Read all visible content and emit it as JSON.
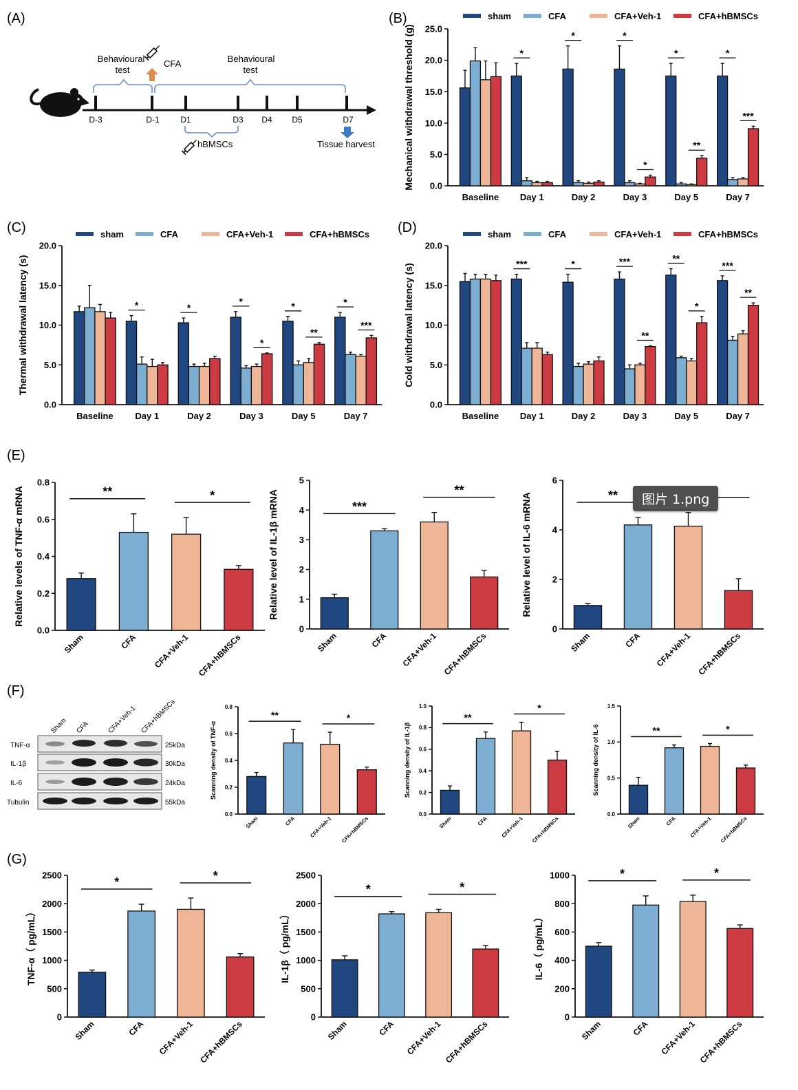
{
  "figure": {
    "panel_letters": [
      "(A)",
      "(B)",
      "(C)",
      "(D)",
      "(E)",
      "(F)",
      "(G)"
    ],
    "legend_labels": [
      "sham",
      "CFA",
      "CFA+Veh-1",
      "CFA+hBMSCs"
    ],
    "timepoints": [
      "Baseline",
      "Day 1",
      "Day 2",
      "Day 3",
      "Day 5",
      "Day 7"
    ],
    "groups": [
      "Sham",
      "CFA",
      "CFA+Veh-1",
      "CFA+hBMSCs"
    ],
    "colors": {
      "sham": "#20477f",
      "cfa": "#7eadd2",
      "veh": "#eeb597",
      "hbmsc": "#cc3b41",
      "ink": "#111111",
      "arrow_orange": "#e08b4f",
      "arrow_blue": "#3f7bc2"
    }
  },
  "tooltip": {
    "label": "图片 1.png"
  },
  "timeline": {
    "days": [
      "D-3",
      "D-1",
      "D1",
      "D3",
      "D4",
      "D5",
      "D7"
    ],
    "behavioural_test_1": [
      "Behavioural",
      "test"
    ],
    "behavioural_test_2": [
      "Behavioural",
      "test"
    ],
    "cfa_label": "CFA",
    "hbmsc_label": "hBMSCs",
    "harvest_label": "Tissue harvest",
    "icons": [
      "rat-icon",
      "syringe-icon",
      "orange-arrow-icon",
      "blue-arrow-icon"
    ]
  },
  "western_blot": {
    "lanes": [
      "Sham",
      "CFA",
      "CFA+Veh-1",
      "CFA+hBMSCs"
    ],
    "bands": [
      {
        "protein": "TNF-α",
        "size": "25kDa"
      },
      {
        "protein": "IL-1β",
        "size": "30kDa"
      },
      {
        "protein": "IL-6",
        "size": "24kDa"
      },
      {
        "protein": "Tubulin",
        "size": "55kDa"
      }
    ]
  },
  "chart_data": [
    {
      "id": "B",
      "type": "bar",
      "ylabel": "Mechanical withdrawal threshold (g)",
      "categories": [
        "Baseline",
        "Day 1",
        "Day 2",
        "Day 3",
        "Day 5",
        "Day 7"
      ],
      "ylim": [
        0,
        25
      ],
      "yticks": [
        "0.0",
        "5.0",
        "10.0",
        "15.0",
        "20.0",
        "25.0"
      ],
      "series": [
        {
          "name": "sham",
          "values": [
            15.6,
            17.5,
            18.6,
            18.6,
            17.5,
            17.5
          ],
          "errors": [
            2.8,
            2.0,
            3.7,
            3.7,
            2.0,
            2.0
          ]
        },
        {
          "name": "CFA",
          "values": [
            19.9,
            0.8,
            0.5,
            0.5,
            0.3,
            1.0
          ],
          "errors": [
            2.1,
            0.5,
            0.3,
            0.3,
            0.2,
            0.3
          ]
        },
        {
          "name": "CFA+Veh-1",
          "values": [
            16.9,
            0.5,
            0.4,
            0.3,
            0.2,
            1.1
          ],
          "errors": [
            3.0,
            0.2,
            0.2,
            0.1,
            0.1,
            0.2
          ]
        },
        {
          "name": "CFA+hBMSCs",
          "values": [
            17.4,
            0.5,
            0.6,
            1.4,
            4.4,
            9.1
          ],
          "errors": [
            2.2,
            0.2,
            0.2,
            0.3,
            0.4,
            0.4
          ]
        }
      ],
      "annotations": [
        {
          "cat": 1,
          "from": 0,
          "to": 1,
          "text": "*"
        },
        {
          "cat": 2,
          "from": 0,
          "to": 1,
          "text": "*"
        },
        {
          "cat": 3,
          "from": 0,
          "to": 1,
          "text": "*"
        },
        {
          "cat": 3,
          "from": 2,
          "to": 3,
          "text": "*"
        },
        {
          "cat": 4,
          "from": 0,
          "to": 1,
          "text": "*"
        },
        {
          "cat": 4,
          "from": 2,
          "to": 3,
          "text": "**"
        },
        {
          "cat": 5,
          "from": 0,
          "to": 1,
          "text": "*"
        },
        {
          "cat": 5,
          "from": 2,
          "to": 3,
          "text": "***"
        }
      ]
    },
    {
      "id": "C",
      "type": "bar",
      "ylabel": "Thermal withdrawal latency (s)",
      "categories": [
        "Baseline",
        "Day 1",
        "Day 2",
        "Day 3",
        "Day 5",
        "Day 7"
      ],
      "ylim": [
        0,
        20
      ],
      "yticks": [
        "0.0",
        "5.0",
        "10.0",
        "15.0",
        "20.0"
      ],
      "series": [
        {
          "name": "sham",
          "values": [
            11.7,
            10.5,
            10.3,
            11.0,
            10.5,
            11.0
          ],
          "errors": [
            0.7,
            0.7,
            0.6,
            0.7,
            0.6,
            0.6
          ]
        },
        {
          "name": "CFA",
          "values": [
            12.2,
            5.1,
            4.8,
            4.6,
            5.0,
            6.3
          ],
          "errors": [
            2.8,
            0.9,
            0.3,
            0.3,
            0.5,
            0.3
          ]
        },
        {
          "name": "CFA+Veh-1",
          "values": [
            11.7,
            4.8,
            4.8,
            4.8,
            5.3,
            6.1
          ],
          "errors": [
            0.9,
            0.9,
            0.4,
            0.3,
            0.5,
            0.2
          ]
        },
        {
          "name": "CFA+hBMSCs",
          "values": [
            10.9,
            5.0,
            5.8,
            6.4,
            7.6,
            8.4
          ],
          "errors": [
            0.7,
            0.3,
            0.3,
            0.1,
            0.2,
            0.3
          ]
        }
      ],
      "annotations": [
        {
          "cat": 1,
          "from": 0,
          "to": 1,
          "text": "*"
        },
        {
          "cat": 2,
          "from": 0,
          "to": 1,
          "text": "*"
        },
        {
          "cat": 3,
          "from": 0,
          "to": 1,
          "text": "*"
        },
        {
          "cat": 3,
          "from": 2,
          "to": 3,
          "text": "*"
        },
        {
          "cat": 4,
          "from": 0,
          "to": 1,
          "text": "*"
        },
        {
          "cat": 4,
          "from": 2,
          "to": 3,
          "text": "**"
        },
        {
          "cat": 5,
          "from": 0,
          "to": 1,
          "text": "*"
        },
        {
          "cat": 5,
          "from": 2,
          "to": 3,
          "text": "***"
        }
      ]
    },
    {
      "id": "D",
      "type": "bar",
      "ylabel": "Cold withdrawal latency (s)",
      "categories": [
        "Baseline",
        "Day 1",
        "Day 2",
        "Day 3",
        "Day 5",
        "Day 7"
      ],
      "ylim": [
        0,
        20
      ],
      "yticks": [
        "0.0",
        "5.0",
        "10.0",
        "15.0",
        "20.0"
      ],
      "series": [
        {
          "name": "sham",
          "values": [
            15.5,
            15.8,
            15.4,
            15.8,
            16.3,
            15.6
          ],
          "errors": [
            1.0,
            0.6,
            1.0,
            0.9,
            0.8,
            0.6
          ]
        },
        {
          "name": "CFA",
          "values": [
            15.8,
            7.1,
            4.8,
            4.5,
            5.9,
            8.1
          ],
          "errors": [
            0.6,
            0.7,
            0.4,
            0.5,
            0.2,
            0.5
          ]
        },
        {
          "name": "CFA+Veh-1",
          "values": [
            15.8,
            7.1,
            5.1,
            5.0,
            5.5,
            8.9
          ],
          "errors": [
            0.6,
            0.7,
            0.3,
            0.2,
            0.3,
            0.4
          ]
        },
        {
          "name": "CFA+hBMSCs",
          "values": [
            15.6,
            6.3,
            5.5,
            7.3,
            10.3,
            12.5
          ],
          "errors": [
            0.7,
            0.3,
            0.5,
            0.1,
            0.8,
            0.3
          ]
        }
      ],
      "annotations": [
        {
          "cat": 1,
          "from": 0,
          "to": 1,
          "text": "***"
        },
        {
          "cat": 2,
          "from": 0,
          "to": 1,
          "text": "*"
        },
        {
          "cat": 3,
          "from": 0,
          "to": 1,
          "text": "***"
        },
        {
          "cat": 3,
          "from": 2,
          "to": 3,
          "text": "**"
        },
        {
          "cat": 4,
          "from": 0,
          "to": 1,
          "text": "**"
        },
        {
          "cat": 4,
          "from": 2,
          "to": 3,
          "text": "*"
        },
        {
          "cat": 5,
          "from": 0,
          "to": 1,
          "text": "***"
        },
        {
          "cat": 5,
          "from": 2,
          "to": 3,
          "text": "**"
        }
      ]
    },
    {
      "id": "E1",
      "type": "bar",
      "ylabel": "Relative levels of TNF-α mRNA",
      "categories": [
        "Sham",
        "CFA",
        "CFA+Veh-1",
        "CFA+hBMSCs"
      ],
      "ylim": [
        0,
        0.8
      ],
      "yticks": [
        "0.0",
        "0.2",
        "0.4",
        "0.6",
        "0.8"
      ],
      "values": [
        0.28,
        0.53,
        0.52,
        0.33
      ],
      "errors": [
        0.03,
        0.1,
        0.09,
        0.02
      ],
      "annotations": [
        {
          "from": 0,
          "to": 1,
          "text": "**"
        },
        {
          "from": 2,
          "to": 3,
          "text": "*"
        }
      ]
    },
    {
      "id": "E2",
      "type": "bar",
      "ylabel": "Relative level of IL-1β mRNA",
      "categories": [
        "Sham",
        "CFA",
        "CFA+Veh-1",
        "CFA+hBMSCs"
      ],
      "ylim": [
        0,
        5
      ],
      "yticks": [
        "0",
        "1",
        "2",
        "3",
        "4",
        "5"
      ],
      "values": [
        1.05,
        3.3,
        3.6,
        1.75
      ],
      "errors": [
        0.12,
        0.07,
        0.32,
        0.22
      ],
      "annotations": [
        {
          "from": 0,
          "to": 1,
          "text": "***"
        },
        {
          "from": 2,
          "to": 3,
          "text": "**"
        }
      ]
    },
    {
      "id": "E3",
      "type": "bar",
      "ylabel": "Relative level of IL-6 mRNA",
      "categories": [
        "Sham",
        "CFA",
        "CFA+Veh-1",
        "CFA+hBMSCs"
      ],
      "ylim": [
        0,
        6
      ],
      "yticks": [
        "0",
        "2",
        "4",
        "6"
      ],
      "values": [
        0.95,
        4.2,
        4.15,
        1.55
      ],
      "errors": [
        0.08,
        0.3,
        0.55,
        0.48
      ],
      "annotations": [
        {
          "from": 0,
          "to": 1,
          "text": "**"
        },
        {
          "from": 2,
          "to": 3,
          "text": ""
        }
      ]
    },
    {
      "id": "F1",
      "type": "bar",
      "ylabel": "Scanning density of TNF-α",
      "categories": [
        "Sham",
        "CFA",
        "CFA+Veh-1",
        "CFA+hBMSCs"
      ],
      "ylim": [
        0,
        0.8
      ],
      "yticks": [
        "0.0",
        "0.2",
        "0.4",
        "0.6",
        "0.8"
      ],
      "values": [
        0.28,
        0.53,
        0.52,
        0.33
      ],
      "errors": [
        0.03,
        0.1,
        0.09,
        0.02
      ],
      "annotations": [
        {
          "from": 0,
          "to": 1,
          "text": "**"
        },
        {
          "from": 2,
          "to": 3,
          "text": "*"
        }
      ]
    },
    {
      "id": "F2",
      "type": "bar",
      "ylabel": "Scanning density of IL-1β",
      "categories": [
        "Sham",
        "CFA",
        "CFA+Veh-1",
        "CFA+hBMSCs"
      ],
      "ylim": [
        0,
        1.0
      ],
      "yticks": [
        "0.0",
        "0.2",
        "0.4",
        "0.6",
        "0.8",
        "1.0"
      ],
      "values": [
        0.22,
        0.7,
        0.77,
        0.5
      ],
      "errors": [
        0.04,
        0.06,
        0.08,
        0.08
      ],
      "annotations": [
        {
          "from": 0,
          "to": 1,
          "text": "**"
        },
        {
          "from": 2,
          "to": 3,
          "text": "*"
        }
      ]
    },
    {
      "id": "F3",
      "type": "bar",
      "ylabel": "Scanning density of IL-6",
      "categories": [
        "Sham",
        "CFA",
        "CFA+Veh-1",
        "CFA+hBMSCs"
      ],
      "ylim": [
        0,
        1.5
      ],
      "yticks": [
        "0.0",
        "0.5",
        "1.0",
        "1.5"
      ],
      "values": [
        0.4,
        0.92,
        0.94,
        0.64
      ],
      "errors": [
        0.11,
        0.04,
        0.04,
        0.04
      ],
      "annotations": [
        {
          "from": 0,
          "to": 1,
          "text": "**"
        },
        {
          "from": 2,
          "to": 3,
          "text": "*"
        }
      ]
    },
    {
      "id": "G1",
      "type": "bar",
      "ylabel": "TNF-α（ pg/mL）",
      "categories": [
        "Sham",
        "CFA",
        "CFA+Veh-1",
        "CFA+hBMSCs"
      ],
      "ylim": [
        0,
        2500
      ],
      "yticks": [
        "0",
        "500",
        "1000",
        "1500",
        "2000",
        "2500"
      ],
      "values": [
        790,
        1870,
        1900,
        1060
      ],
      "errors": [
        40,
        120,
        200,
        60
      ],
      "annotations": [
        {
          "from": 0,
          "to": 1,
          "text": "*"
        },
        {
          "from": 2,
          "to": 3,
          "text": "*"
        }
      ]
    },
    {
      "id": "G2",
      "type": "bar",
      "ylabel": "IL-1β（ pg/mL）",
      "categories": [
        "Sham",
        "CFA",
        "CFA+Veh-1",
        "CFA+hBMSCs"
      ],
      "ylim": [
        0,
        2500
      ],
      "yticks": [
        "0",
        "500",
        "1000",
        "1500",
        "2000",
        "2500"
      ],
      "values": [
        1010,
        1820,
        1840,
        1200
      ],
      "errors": [
        70,
        40,
        60,
        60
      ],
      "annotations": [
        {
          "from": 0,
          "to": 1,
          "text": "*"
        },
        {
          "from": 2,
          "to": 3,
          "text": "*"
        }
      ]
    },
    {
      "id": "G3",
      "type": "bar",
      "ylabel": "IL-6（ pg/mL）",
      "categories": [
        "Sham",
        "CFA",
        "CFA+Veh-1",
        "CFA+hBMSCs"
      ],
      "ylim": [
        0,
        1000
      ],
      "yticks": [
        "0",
        "200",
        "400",
        "600",
        "800",
        "1000"
      ],
      "values": [
        500,
        790,
        815,
        625
      ],
      "errors": [
        25,
        65,
        45,
        25
      ],
      "annotations": [
        {
          "from": 0,
          "to": 1,
          "text": "*"
        },
        {
          "from": 2,
          "to": 3,
          "text": "*"
        }
      ]
    }
  ]
}
